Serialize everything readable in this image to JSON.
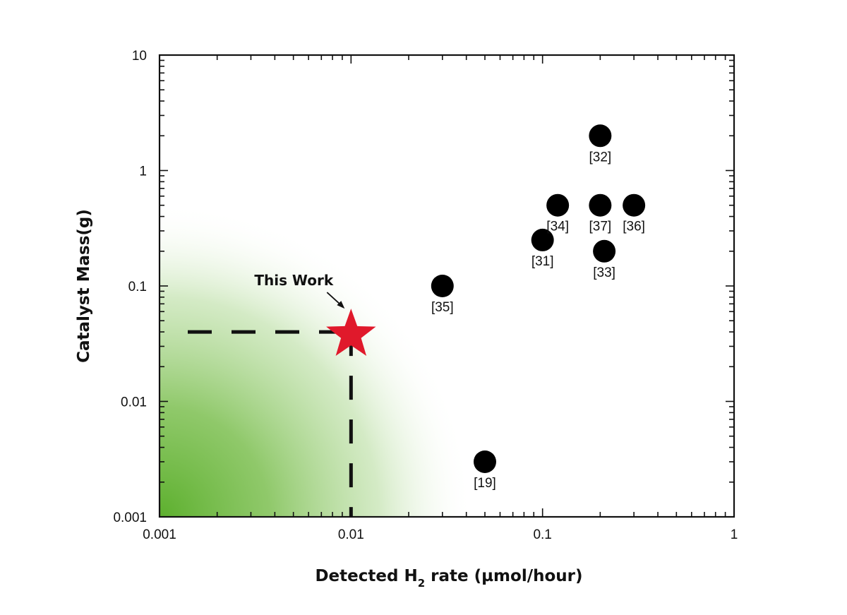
{
  "chart_data": {
    "type": "scatter",
    "title": "",
    "xlabel": {
      "main": "Detected H",
      "sub": "2",
      "rest": " rate (µmol/hour)"
    },
    "ylabel": "Catalyst Mass(g)",
    "xscale": "log",
    "yscale": "log",
    "xlim": [
      0.001,
      1
    ],
    "ylim": [
      0.001,
      10
    ],
    "xticks": [
      {
        "value": 0.001,
        "label": "0.001"
      },
      {
        "value": 0.01,
        "label": "0.01"
      },
      {
        "value": 0.1,
        "label": "0.1"
      },
      {
        "value": 1,
        "label": "1"
      }
    ],
    "yticks": [
      {
        "value": 0.001,
        "label": "0.001"
      },
      {
        "value": 0.01,
        "label": "0.01"
      },
      {
        "value": 0.1,
        "label": "0.1"
      },
      {
        "value": 1,
        "label": "1"
      },
      {
        "value": 10,
        "label": "10"
      }
    ],
    "grid": false,
    "legend": "none",
    "series": [
      {
        "marker": "circle",
        "color": "#000000",
        "points": [
          {
            "x": 0.2,
            "y": 2,
            "label": "[32]"
          },
          {
            "x": 0.12,
            "y": 0.5,
            "label": "[34]"
          },
          {
            "x": 0.2,
            "y": 0.5,
            "label": "[37]"
          },
          {
            "x": 0.3,
            "y": 0.5,
            "label": "[36]"
          },
          {
            "x": 0.1,
            "y": 0.25,
            "label": "[31]"
          },
          {
            "x": 0.21,
            "y": 0.2,
            "label": "[33]"
          },
          {
            "x": 0.03,
            "y": 0.1,
            "label": "[35]"
          },
          {
            "x": 0.05,
            "y": 0.003,
            "label": "[19]"
          }
        ]
      },
      {
        "marker": "star",
        "color": "#e0192b",
        "points": [
          {
            "x": 0.01,
            "y": 0.04,
            "label": "This Work"
          }
        ]
      }
    ],
    "annotation": {
      "text": "This Work"
    },
    "highlight_region_color": "#5db02e"
  }
}
